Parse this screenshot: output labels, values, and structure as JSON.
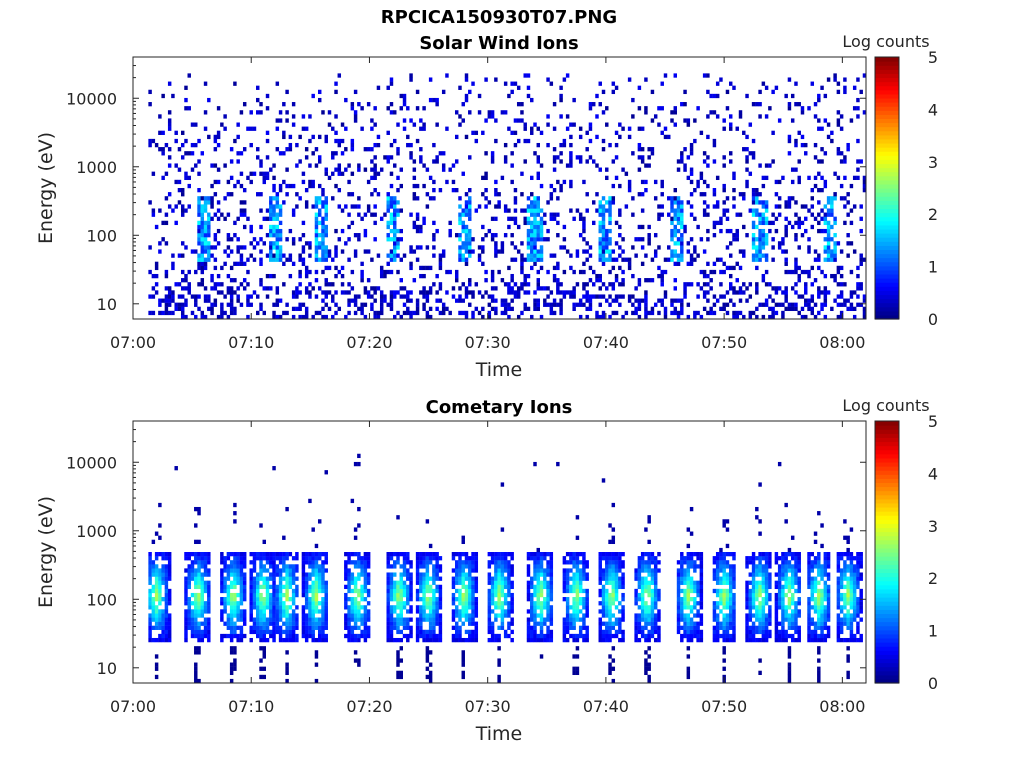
{
  "figure": {
    "title": "RPCICA150930T07.PNG",
    "colors": {
      "background": "#ffffff",
      "axis": "#262626",
      "colormap": "jet"
    }
  },
  "chart_data": [
    {
      "type": "heatmap",
      "title": "Solar Wind Ions",
      "xlabel": "Time",
      "ylabel": "Energy (eV)",
      "y_scale": "log",
      "ylim": [
        6,
        40000
      ],
      "xlim": [
        "07:00",
        "08:02"
      ],
      "x_ticks": [
        "07:00",
        "07:10",
        "07:20",
        "07:30",
        "07:40",
        "07:50",
        "08:00"
      ],
      "y_ticks": [
        "10",
        "100",
        "1000",
        "10000"
      ],
      "colorbar": {
        "label": "Log counts",
        "range": [
          0,
          5
        ],
        "ticks": [
          "0",
          "1",
          "2",
          "3",
          "4",
          "5"
        ]
      },
      "description_values": {
        "dense_low_energy_bursts_at": [
          "07:06",
          "07:12",
          "07:16",
          "07:22",
          "07:28",
          "07:34",
          "07:40",
          "07:46",
          "07:53",
          "07:59"
        ],
        "burst_peak_log_counts": 1.9,
        "background_log_counts": 0.3
      }
    },
    {
      "type": "heatmap",
      "title": "Cometary Ions",
      "xlabel": "Time",
      "ylabel": "Energy (eV)",
      "y_scale": "log",
      "ylim": [
        6,
        40000
      ],
      "xlim": [
        "07:00",
        "08:02"
      ],
      "x_ticks": [
        "07:00",
        "07:10",
        "07:20",
        "07:30",
        "07:40",
        "07:50",
        "08:00"
      ],
      "y_ticks": [
        "10",
        "100",
        "1000",
        "10000"
      ],
      "colorbar": {
        "label": "Log counts",
        "range": [
          0,
          5
        ],
        "ticks": [
          "0",
          "1",
          "2",
          "3",
          "4",
          "5"
        ]
      },
      "description_values": {
        "bursts_center_times": [
          "07:00.5",
          "07:02",
          "07:05.5",
          "07:08.5",
          "07:11",
          "07:13",
          "07:15.5",
          "07:19",
          "07:22.5",
          "07:25",
          "07:28",
          "07:31",
          "07:34.5",
          "07:37.5",
          "07:40.5",
          "07:43.5",
          "07:47",
          "07:50",
          "07:53",
          "07:55.5",
          "07:58",
          "08:00.5"
        ],
        "burst_energy_range_eV": [
          25,
          500
        ],
        "burst_peak_log_counts": 2.7
      }
    }
  ]
}
